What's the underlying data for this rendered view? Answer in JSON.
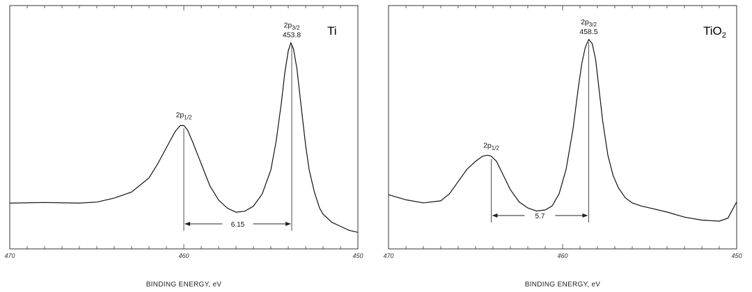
{
  "chart_data": [
    {
      "type": "line",
      "sample": "Ti",
      "xlabel": "BINDING ENERGY, eV",
      "xlim": [
        470,
        450
      ],
      "x_ticks": [
        470,
        460,
        450
      ],
      "x_tick_labels": [
        "470",
        "460",
        "450"
      ],
      "ylim": [
        0,
        1
      ],
      "grid": false,
      "series": [
        {
          "x": [
            470,
            468,
            466,
            465,
            464,
            463,
            462,
            461.5,
            461,
            460.5,
            460.2,
            460.0,
            459.8,
            459.5,
            459,
            458.5,
            458,
            457.5,
            457,
            456.5,
            456,
            455.5,
            455,
            454.7,
            454.4,
            454.2,
            454.0,
            453.85,
            453.7,
            453.5,
            453.2,
            453.0,
            452.8,
            452.5,
            452.2,
            452.0,
            451.5,
            451,
            450.5,
            450
          ],
          "y": [
            0.165,
            0.168,
            0.165,
            0.17,
            0.19,
            0.22,
            0.29,
            0.36,
            0.44,
            0.52,
            0.55,
            0.55,
            0.53,
            0.47,
            0.36,
            0.25,
            0.18,
            0.14,
            0.12,
            0.125,
            0.15,
            0.21,
            0.33,
            0.47,
            0.66,
            0.81,
            0.92,
            0.96,
            0.93,
            0.83,
            0.6,
            0.45,
            0.33,
            0.22,
            0.14,
            0.11,
            0.07,
            0.05,
            0.03,
            0.02
          ]
        }
      ],
      "peaks": [
        {
          "label": "2p1/2",
          "label_main": "2p",
          "label_sub": "1/2",
          "x": 460.0
        },
        {
          "label": "2p3/2",
          "label_main": "2p",
          "label_sub": "3/2",
          "x": 453.8,
          "value_label": "453.8"
        }
      ],
      "separation": {
        "label": "6.15",
        "from": 460.0,
        "to": 453.8
      }
    },
    {
      "type": "line",
      "sample": "TiO2",
      "sample_main": "TiO",
      "sample_sub": "2",
      "xlabel": "BINDING ENERGY, eV",
      "xlim": [
        470,
        450
      ],
      "x_ticks": [
        470,
        460,
        450
      ],
      "x_tick_labels": [
        "470",
        "460",
        "450"
      ],
      "ylim": [
        0,
        1
      ],
      "grid": false,
      "series": [
        {
          "x": [
            470,
            469,
            468,
            467,
            466.5,
            466,
            465.5,
            465,
            464.6,
            464.3,
            464.1,
            463.8,
            463.4,
            463,
            462.5,
            462,
            461.5,
            461,
            460.6,
            460.2,
            459.8,
            459.4,
            459.1,
            458.9,
            458.7,
            458.5,
            458.3,
            458.1,
            457.9,
            457.7,
            457.4,
            457.1,
            456.8,
            456.4,
            456,
            455.5,
            455,
            454,
            453,
            452,
            451,
            450.5,
            450
          ],
          "y": [
            0.205,
            0.18,
            0.165,
            0.175,
            0.21,
            0.27,
            0.33,
            0.37,
            0.395,
            0.4,
            0.395,
            0.37,
            0.3,
            0.23,
            0.17,
            0.14,
            0.125,
            0.13,
            0.15,
            0.21,
            0.33,
            0.53,
            0.73,
            0.85,
            0.93,
            0.97,
            0.95,
            0.87,
            0.72,
            0.57,
            0.4,
            0.3,
            0.24,
            0.19,
            0.165,
            0.15,
            0.14,
            0.12,
            0.095,
            0.08,
            0.075,
            0.09,
            0.17
          ]
        }
      ],
      "peaks": [
        {
          "label": "2p1/2",
          "label_main": "2p",
          "label_sub": "1/2",
          "x": 464.1
        },
        {
          "label": "2p3/2",
          "label_main": "2p",
          "label_sub": "3/2",
          "x": 458.5,
          "value_label": "458.5"
        }
      ],
      "separation": {
        "label": "5.7",
        "from": 464.1,
        "to": 458.5
      }
    }
  ]
}
